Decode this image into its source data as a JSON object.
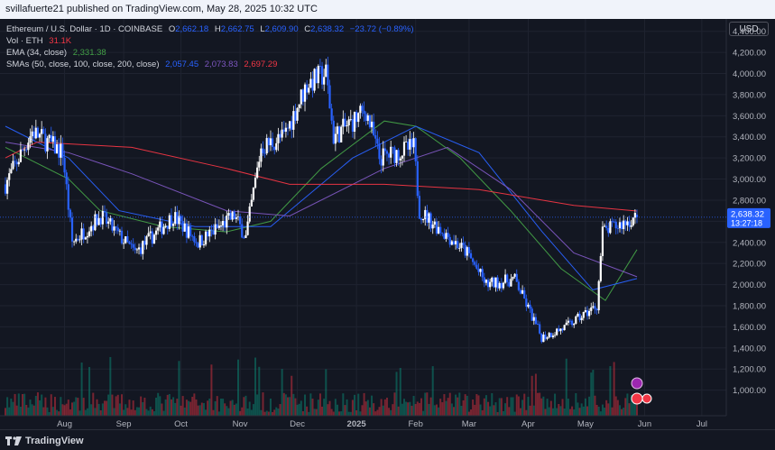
{
  "header": {
    "published": "svillafuerte21 published on TradingView.com, May 28, 2025 10:32 UTC"
  },
  "legend": {
    "symbol": "Ethereum / U.S. Dollar · 1D · COINBASE",
    "o_label": "O",
    "o": "2,662.18",
    "h_label": "H",
    "h": "2,662.75",
    "l_label": "L",
    "l": "2,609.90",
    "c_label": "C",
    "c": "2,638.32",
    "change": "−23.72 (−0.89%)",
    "vol_label": "Vol · ETH",
    "vol": "31.1K",
    "ema_label": "EMA (34, close)",
    "ema": "2,331.38",
    "sma_label": "SMAs (50, close, 100, close, 200, close)",
    "sma50": "2,057.45",
    "sma100": "2,073.83",
    "sma200": "2,697.29"
  },
  "currency_button": "USD",
  "footer": {
    "brand": "TradingView"
  },
  "colors": {
    "up": "#ffffff",
    "down": "#2962ff",
    "ema": "#43a047",
    "sma50": "#2962ff",
    "sma100": "#7e57c2",
    "sma200": "#f23645",
    "bg": "#131722"
  },
  "chart_data": {
    "type": "candlestick",
    "price_axis": {
      "min": 800,
      "max": 4500,
      "ticks": [
        1000,
        1200,
        1400,
        1600,
        1800,
        2000,
        2200,
        2400,
        2600,
        2800,
        3000,
        3200,
        3400,
        3600,
        3800,
        4000,
        4200,
        4400
      ]
    },
    "last_price": {
      "value": "2,638.32",
      "countdown": "13:27:18"
    },
    "x_tick_labels": [
      "Aug",
      "Sep",
      "Oct",
      "Nov",
      "Dec",
      "2025",
      "Feb",
      "Mar",
      "Apr",
      "May",
      "Jun",
      "Jul"
    ],
    "price_path": [
      {
        "m": "2024-07-01",
        "p": 2950
      },
      {
        "m": "2024-07-15",
        "p": 3450
      },
      {
        "m": "2024-07-31",
        "p": 3250
      },
      {
        "m": "2024-08-05",
        "p": 2400
      },
      {
        "m": "2024-08-20",
        "p": 2650
      },
      {
        "m": "2024-09-07",
        "p": 2300
      },
      {
        "m": "2024-09-27",
        "p": 2650
      },
      {
        "m": "2024-10-10",
        "p": 2400
      },
      {
        "m": "2024-10-29",
        "p": 2650
      },
      {
        "m": "2024-11-04",
        "p": 2450
      },
      {
        "m": "2024-11-12",
        "p": 3300
      },
      {
        "m": "2024-11-24",
        "p": 3400
      },
      {
        "m": "2024-12-06",
        "p": 3900
      },
      {
        "m": "2024-12-16",
        "p": 4000
      },
      {
        "m": "2024-12-20",
        "p": 3400
      },
      {
        "m": "2025-01-06",
        "p": 3650
      },
      {
        "m": "2025-01-13",
        "p": 3200
      },
      {
        "m": "2025-01-31",
        "p": 3300
      },
      {
        "m": "2025-02-03",
        "p": 2700
      },
      {
        "m": "2025-02-28",
        "p": 2300
      },
      {
        "m": "2025-03-10",
        "p": 2000
      },
      {
        "m": "2025-03-25",
        "p": 2050
      },
      {
        "m": "2025-04-08",
        "p": 1500
      },
      {
        "m": "2025-04-21",
        "p": 1600
      },
      {
        "m": "2025-05-07",
        "p": 1800
      },
      {
        "m": "2025-05-10",
        "p": 2500
      },
      {
        "m": "2025-05-28",
        "p": 2638
      }
    ],
    "overlays": [
      {
        "name": "EMA (34, close)",
        "last": 2331.38,
        "path": [
          [
            0,
            3300
          ],
          [
            0.1,
            3000
          ],
          [
            0.15,
            2700
          ],
          [
            0.25,
            2550
          ],
          [
            0.35,
            2500
          ],
          [
            0.42,
            2600
          ],
          [
            0.5,
            3100
          ],
          [
            0.6,
            3550
          ],
          [
            0.65,
            3500
          ],
          [
            0.72,
            3200
          ],
          [
            0.8,
            2700
          ],
          [
            0.88,
            2150
          ],
          [
            0.95,
            1850
          ],
          [
            1,
            2331
          ]
        ]
      },
      {
        "name": "SMA 50",
        "last": 2057.45,
        "path": [
          [
            0,
            3500
          ],
          [
            0.1,
            3200
          ],
          [
            0.18,
            2700
          ],
          [
            0.3,
            2550
          ],
          [
            0.42,
            2550
          ],
          [
            0.55,
            3200
          ],
          [
            0.65,
            3500
          ],
          [
            0.75,
            3250
          ],
          [
            0.85,
            2500
          ],
          [
            0.93,
            1950
          ],
          [
            1,
            2057
          ]
        ]
      },
      {
        "name": "SMA 100",
        "last": 2073.83,
        "path": [
          [
            0,
            3350
          ],
          [
            0.1,
            3250
          ],
          [
            0.2,
            3050
          ],
          [
            0.35,
            2700
          ],
          [
            0.45,
            2650
          ],
          [
            0.6,
            3100
          ],
          [
            0.7,
            3300
          ],
          [
            0.8,
            2900
          ],
          [
            0.9,
            2300
          ],
          [
            1,
            2074
          ]
        ]
      },
      {
        "name": "SMA 200",
        "last": 2697.29,
        "path": [
          [
            0,
            3200
          ],
          [
            0.05,
            3350
          ],
          [
            0.2,
            3300
          ],
          [
            0.35,
            3100
          ],
          [
            0.45,
            2950
          ],
          [
            0.6,
            2950
          ],
          [
            0.75,
            2900
          ],
          [
            0.9,
            2750
          ],
          [
            1,
            2697
          ]
        ]
      }
    ]
  }
}
